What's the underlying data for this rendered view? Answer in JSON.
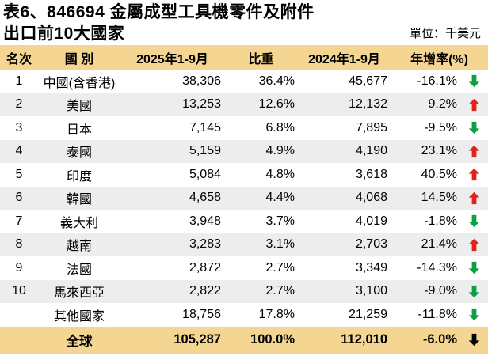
{
  "title": {
    "line1": "表6、846694 金屬成型工具機零件及附件",
    "line2": "出口前10大國家",
    "unit": "單位：千美元"
  },
  "chart_data": {
    "type": "table",
    "title": "表6、846694 金屬成型工具機零件及附件出口前10大國家",
    "unit": "單位：千美元",
    "columns": [
      "名次",
      "國 別",
      "2025年1-9月",
      "比重",
      "2024年1-9月",
      "年增率(%)"
    ],
    "rows": [
      {
        "rank": "1",
        "country": "中國(含香港)",
        "val_2025": "38,306",
        "share": "36.4%",
        "val_2024": "45,677",
        "growth": "-16.1%",
        "trend": "down",
        "total": false
      },
      {
        "rank": "2",
        "country": "美國",
        "val_2025": "13,253",
        "share": "12.6%",
        "val_2024": "12,132",
        "growth": "9.2%",
        "trend": "up",
        "total": false
      },
      {
        "rank": "3",
        "country": "日本",
        "val_2025": "7,145",
        "share": "6.8%",
        "val_2024": "7,895",
        "growth": "-9.5%",
        "trend": "down",
        "total": false
      },
      {
        "rank": "4",
        "country": "泰國",
        "val_2025": "5,159",
        "share": "4.9%",
        "val_2024": "4,190",
        "growth": "23.1%",
        "trend": "up",
        "total": false
      },
      {
        "rank": "5",
        "country": "印度",
        "val_2025": "5,084",
        "share": "4.8%",
        "val_2024": "3,618",
        "growth": "40.5%",
        "trend": "up",
        "total": false
      },
      {
        "rank": "6",
        "country": "韓國",
        "val_2025": "4,658",
        "share": "4.4%",
        "val_2024": "4,068",
        "growth": "14.5%",
        "trend": "up",
        "total": false
      },
      {
        "rank": "7",
        "country": "義大利",
        "val_2025": "3,948",
        "share": "3.7%",
        "val_2024": "4,019",
        "growth": "-1.8%",
        "trend": "down",
        "total": false
      },
      {
        "rank": "8",
        "country": "越南",
        "val_2025": "3,283",
        "share": "3.1%",
        "val_2024": "2,703",
        "growth": "21.4%",
        "trend": "up",
        "total": false
      },
      {
        "rank": "9",
        "country": "法國",
        "val_2025": "2,872",
        "share": "2.7%",
        "val_2024": "3,349",
        "growth": "-14.3%",
        "trend": "down",
        "total": false
      },
      {
        "rank": "10",
        "country": "馬來西亞",
        "val_2025": "2,822",
        "share": "2.7%",
        "val_2024": "3,100",
        "growth": "-9.0%",
        "trend": "down",
        "total": false
      },
      {
        "rank": "",
        "country": "其他國家",
        "val_2025": "18,756",
        "share": "17.8%",
        "val_2024": "21,259",
        "growth": "-11.8%",
        "trend": "down",
        "total": false
      },
      {
        "rank": "",
        "country": "全球",
        "val_2025": "105,287",
        "share": "100.0%",
        "val_2024": "112,010",
        "growth": "-6.0%",
        "trend": "down",
        "total": true
      }
    ]
  },
  "colors": {
    "header_bg": "#F4D592",
    "stripe_bg": "#EDEDED",
    "up_arrow": "#E2231A",
    "down_arrow": "#0E9E45",
    "total_arrow": "#000000"
  }
}
